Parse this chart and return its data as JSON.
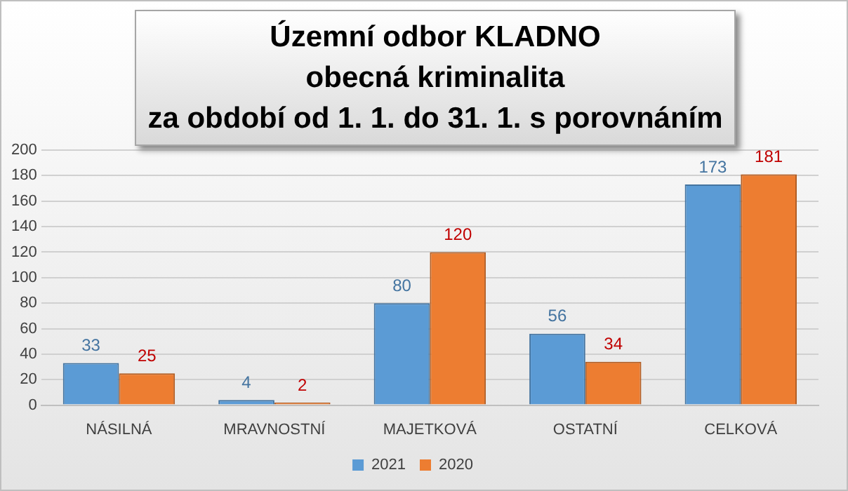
{
  "chart_data": {
    "type": "bar",
    "title": "Územní odbor KLADNO\nobecná kriminalita\nza období od 1. 1. do 31. 1. s porovnáním",
    "categories": [
      "NÁSILNÁ",
      "MRAVNOSTNÍ",
      "MAJETKOVÁ",
      "OSTATNÍ",
      "CELKOVÁ"
    ],
    "series": [
      {
        "name": "2021",
        "color": "#5b9bd5",
        "values": [
          33,
          4,
          80,
          56,
          173
        ]
      },
      {
        "name": "2020",
        "color": "#ed7d31",
        "values": [
          25,
          2,
          120,
          34,
          181
        ]
      }
    ],
    "ylim": [
      0,
      200
    ],
    "yticks": [
      0,
      20,
      40,
      60,
      80,
      100,
      120,
      140,
      160,
      180,
      200
    ],
    "grid": "y",
    "legend": "bottom",
    "data_labels": true
  }
}
